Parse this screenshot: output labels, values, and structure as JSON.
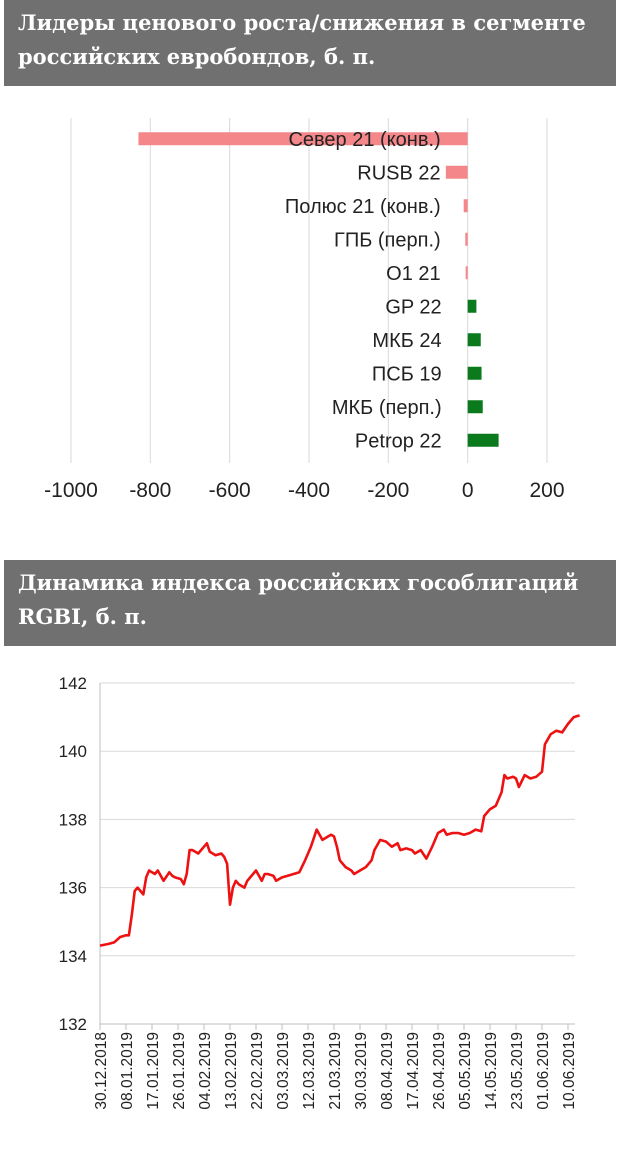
{
  "charts": [
    {
      "title": "Лидеры ценового роста/снижения в сегменте российских евробондов, б. п."
    },
    {
      "title": "Динамика индекса российских гособлигаций RGBI, б. п."
    }
  ],
  "chart_data": [
    {
      "type": "bar",
      "orientation": "horizontal",
      "title": "Лидеры ценового роста/снижения в сегменте российских евробондов, б. п.",
      "categories": [
        "Север 21 (конв.)",
        "RUSB 22",
        "Полюс 21 (конв.)",
        "ГПБ (перп.)",
        "O1 21",
        "GP 22",
        "МКБ 24",
        "ПСБ 19",
        "МКБ (перп.)",
        "Petrop 22"
      ],
      "values": [
        -830,
        -55,
        -10,
        -6,
        -5,
        22,
        33,
        35,
        38,
        78
      ],
      "colors": {
        "negative": "#f4878a",
        "positive": "#0a7a1c"
      },
      "xlim": [
        -1000,
        200
      ],
      "xticks": [
        -1000,
        -800,
        -600,
        -400,
        -200,
        0,
        200
      ],
      "grid": true
    },
    {
      "type": "line",
      "title": "Динамика индекса российских гособлигаций RGBI, б. п.",
      "color": "#ee1111",
      "ylim": [
        132,
        142
      ],
      "yticks": [
        132,
        134,
        136,
        138,
        140,
        142
      ],
      "xticks": [
        "30.12.2018",
        "08.01.2019",
        "17.01.2019",
        "26.01.2019",
        "04.02.2019",
        "13.02.2019",
        "22.02.2019",
        "03.03.2019",
        "12.03.2019",
        "21.03.2019",
        "30.03.2019",
        "08.04.2019",
        "17.04.2019",
        "26.04.2019",
        "05.05.2019",
        "14.05.2019",
        "23.05.2019",
        "01.06.2019",
        "10.06.2019"
      ],
      "grid": true,
      "x": [
        "30.12.2018",
        "02.01.2019",
        "04.01.2019",
        "06.01.2019",
        "08.01.2019",
        "09.01.2019",
        "10.01.2019",
        "11.01.2019",
        "12.01.2019",
        "14.01.2019",
        "15.01.2019",
        "16.01.2019",
        "17.01.2019",
        "18.01.2019",
        "19.01.2019",
        "21.01.2019",
        "23.01.2019",
        "24.01.2019",
        "25.01.2019",
        "27.01.2019",
        "28.01.2019",
        "29.01.2019",
        "30.01.2019",
        "31.01.2019",
        "01.02.2019",
        "02.02.2019",
        "04.02.2019",
        "05.02.2019",
        "06.02.2019",
        "08.02.2019",
        "10.02.2019",
        "11.02.2019",
        "12.02.2019",
        "13.02.2019",
        "14.02.2019",
        "15.02.2019",
        "16.02.2019",
        "18.02.2019",
        "19.02.2019",
        "20.02.2019",
        "22.02.2019",
        "24.02.2019",
        "25.02.2019",
        "26.02.2019",
        "28.02.2019",
        "01.03.2019",
        "03.03.2019",
        "05.03.2019",
        "07.03.2019",
        "09.03.2019",
        "11.03.2019",
        "13.03.2019",
        "15.03.2019",
        "17.03.2019",
        "19.03.2019",
        "20.03.2019",
        "21.03.2019",
        "22.03.2019",
        "23.03.2019",
        "25.03.2019",
        "27.03.2019",
        "28.03.2019",
        "30.03.2019",
        "01.04.2019",
        "03.04.2019",
        "04.04.2019",
        "06.04.2019",
        "08.04.2019",
        "10.04.2019",
        "12.04.2019",
        "13.04.2019",
        "15.04.2019",
        "17.04.2019",
        "18.04.2019",
        "20.04.2019",
        "22.04.2019",
        "24.04.2019",
        "26.04.2019",
        "28.04.2019",
        "29.04.2019",
        "01.05.2019",
        "03.05.2019",
        "05.05.2019",
        "07.05.2019",
        "09.05.2019",
        "11.05.2019",
        "12.05.2019",
        "14.05.2019",
        "16.05.2019",
        "18.05.2019",
        "19.05.2019",
        "20.05.2019",
        "22.05.2019",
        "23.05.2019",
        "24.05.2019",
        "26.05.2019",
        "28.05.2019",
        "30.05.2019",
        "01.06.2019",
        "02.06.2019",
        "04.06.2019",
        "06.06.2019",
        "08.06.2019",
        "10.06.2019",
        "12.06.2019",
        "14.06.2019"
      ],
      "values": [
        134.3,
        134.35,
        134.4,
        134.55,
        134.6,
        134.6,
        135.2,
        135.9,
        136.0,
        135.8,
        136.3,
        136.5,
        136.45,
        136.4,
        136.5,
        136.2,
        136.45,
        136.35,
        136.3,
        136.25,
        136.1,
        136.4,
        137.1,
        137.1,
        137.05,
        137.0,
        137.2,
        137.3,
        137.05,
        136.95,
        137.0,
        136.9,
        136.7,
        135.5,
        136.0,
        136.2,
        136.1,
        136.0,
        136.2,
        136.3,
        136.5,
        136.2,
        136.4,
        136.4,
        136.35,
        136.2,
        136.3,
        136.35,
        136.4,
        136.45,
        136.8,
        137.2,
        137.7,
        137.4,
        137.5,
        137.55,
        137.5,
        137.2,
        136.8,
        136.6,
        136.5,
        136.4,
        136.5,
        136.6,
        136.8,
        137.1,
        137.4,
        137.35,
        137.2,
        137.3,
        137.1,
        137.15,
        137.1,
        137.0,
        137.1,
        136.85,
        137.2,
        137.6,
        137.7,
        137.55,
        137.6,
        137.6,
        137.55,
        137.6,
        137.7,
        137.65,
        138.1,
        138.3,
        138.4,
        138.8,
        139.3,
        139.2,
        139.25,
        139.2,
        138.95,
        139.3,
        139.2,
        139.25,
        139.4,
        140.2,
        140.5,
        140.6,
        140.55,
        140.8,
        141.0,
        141.05
      ]
    }
  ]
}
